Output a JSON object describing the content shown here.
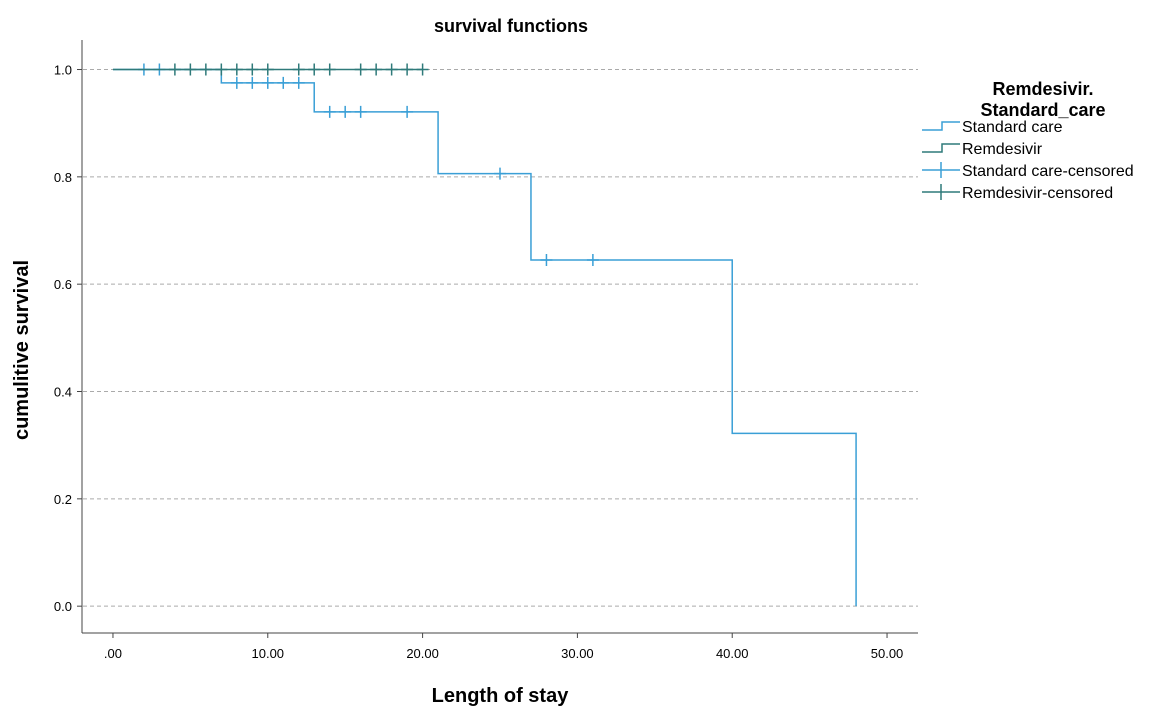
{
  "chart_data": {
    "type": "line",
    "subtype": "kaplan-meier-step",
    "title": "survival functions",
    "xlabel": "Length of stay",
    "ylabel": "cumulitive survival",
    "xlim": [
      -2,
      52
    ],
    "ylim": [
      -0.05,
      1.055
    ],
    "x_ticks": [
      0,
      10,
      20,
      30,
      40,
      50
    ],
    "x_tick_labels": [
      ".00",
      "10.00",
      "20.00",
      "30.00",
      "40.00",
      "50.00"
    ],
    "y_ticks": [
      0,
      0.2,
      0.4,
      0.6,
      0.8,
      1.0
    ],
    "y_tick_labels": [
      "0.0",
      "0.2",
      "0.4",
      "0.6",
      "0.8",
      "1.0"
    ],
    "grid": "horizontal dashed",
    "legend_title_lines": [
      "Remdesivir.",
      "Standard_care"
    ],
    "legend_position": "right",
    "series": [
      {
        "name": "Standard care",
        "color": "#3a9fd6",
        "steps": [
          [
            0,
            1.0
          ],
          [
            7,
            0.975
          ],
          [
            13,
            0.921
          ],
          [
            21,
            0.806
          ],
          [
            27,
            0.645
          ],
          [
            40,
            0.322
          ],
          [
            48,
            0.0
          ]
        ],
        "end_x": 48,
        "censored": [
          [
            2,
            1.0
          ],
          [
            3,
            1.0
          ],
          [
            8,
            0.975
          ],
          [
            9,
            0.975
          ],
          [
            10,
            0.975
          ],
          [
            11,
            0.975
          ],
          [
            12,
            0.975
          ],
          [
            14,
            0.921
          ],
          [
            15,
            0.921
          ],
          [
            16,
            0.921
          ],
          [
            19,
            0.921
          ],
          [
            25,
            0.806
          ],
          [
            28,
            0.645
          ],
          [
            31,
            0.645
          ]
        ]
      },
      {
        "name": "Remdesivir",
        "color": "#2f7a7a",
        "steps": [
          [
            0,
            1.0
          ]
        ],
        "end_x": 20,
        "censored": [
          [
            4,
            1.0
          ],
          [
            5,
            1.0
          ],
          [
            6,
            1.0
          ],
          [
            7,
            1.0
          ],
          [
            8,
            1.0
          ],
          [
            9,
            1.0
          ],
          [
            10,
            1.0
          ],
          [
            12,
            1.0
          ],
          [
            13,
            1.0
          ],
          [
            14,
            1.0
          ],
          [
            16,
            1.0
          ],
          [
            17,
            1.0
          ],
          [
            18,
            1.0
          ],
          [
            19,
            1.0
          ],
          [
            20,
            1.0
          ]
        ]
      }
    ],
    "legend_entries": [
      {
        "label": "Standard care",
        "symbol": "step",
        "color": "#3a9fd6"
      },
      {
        "label": "Remdesivir",
        "symbol": "step",
        "color": "#2f7a7a"
      },
      {
        "label": "Standard care-censored",
        "symbol": "plus",
        "color": "#3a9fd6"
      },
      {
        "label": "Remdesivir-censored",
        "symbol": "plus",
        "color": "#2f7a7a"
      }
    ]
  }
}
